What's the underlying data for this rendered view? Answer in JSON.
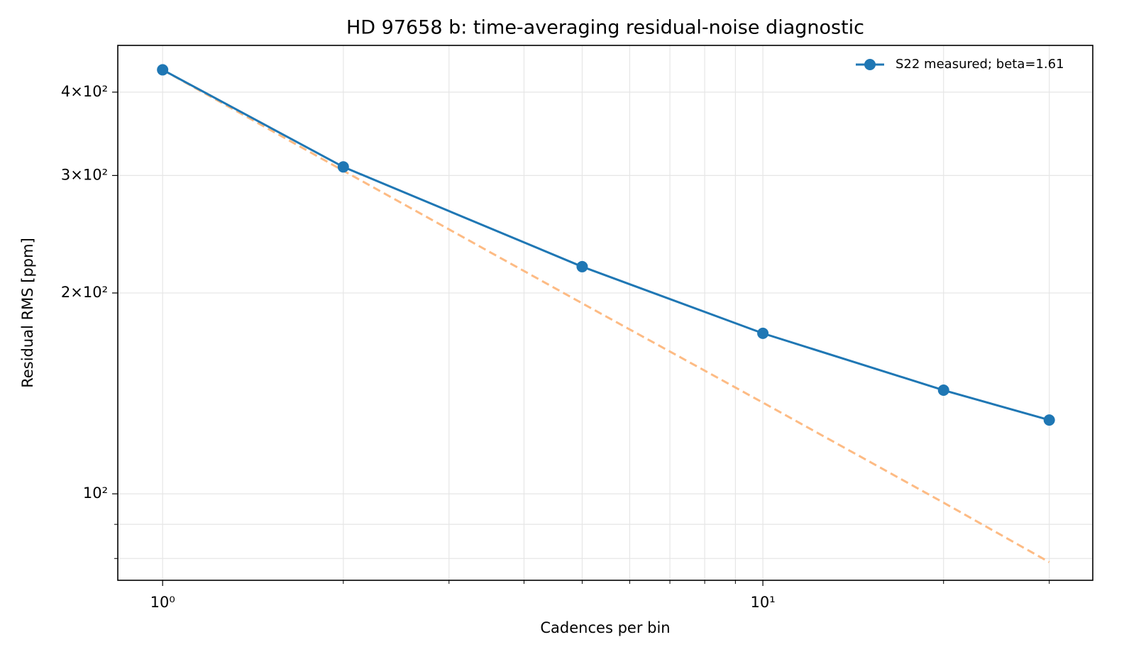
{
  "chart_data": {
    "type": "line",
    "title": "HD 97658 b: time-averaging residual-noise diagnostic",
    "xlabel": "Cadences per bin",
    "ylabel": "Residual RMS [ppm]",
    "xscale": "log",
    "yscale": "log",
    "grid": true,
    "legend": "upper right",
    "xlim": [
      0.842,
      35.45
    ],
    "ylim": [
      74.2,
      470
    ],
    "xticks": [
      {
        "value": 1,
        "label": "10⁰"
      },
      {
        "value": 10,
        "label": "10¹"
      }
    ],
    "xminorticks": [
      2,
      3,
      4,
      5,
      6,
      7,
      8,
      9,
      20,
      30
    ],
    "yticks": [
      {
        "value": 100,
        "label": "10²"
      },
      {
        "value": 200,
        "label": "2×10²"
      },
      {
        "value": 300,
        "label": "3×10²"
      },
      {
        "value": 400,
        "label": "4×10²"
      }
    ],
    "yminorticks": [
      80,
      90
    ],
    "x": [
      1,
      2,
      5,
      10,
      20,
      30
    ],
    "series": [
      {
        "name": "S22 measured; beta=1.61",
        "color": "#1f77b4",
        "style": "solid",
        "marker": true,
        "values": [
          432,
          309,
          219,
          174,
          143,
          129
        ]
      },
      {
        "color": "#fdbb84",
        "style": "dashed",
        "marker": false,
        "values": [
          432,
          305,
          193,
          137,
          97,
          79
        ]
      }
    ]
  }
}
